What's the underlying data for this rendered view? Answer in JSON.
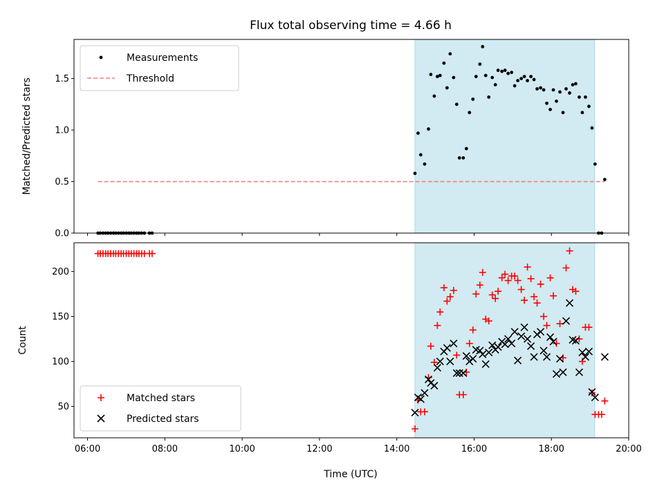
{
  "chart_data": {
    "title": "Flux total observing time = 4.66 h",
    "xlabel": "Time (UTC)",
    "xlim": [
      5.65,
      20.0
    ],
    "xticks": [
      6,
      8,
      10,
      12,
      14,
      16,
      18,
      20
    ],
    "xticklabels": [
      "06:00",
      "08:00",
      "10:00",
      "12:00",
      "14:00",
      "16:00",
      "18:00",
      "20:00"
    ],
    "shaded_span": [
      14.47,
      19.12
    ],
    "shade_color": "#add8e6",
    "panels": [
      {
        "type": "scatter",
        "ylabel": "Matched/Predicted stars",
        "ylim": [
          0,
          1.88
        ],
        "yticks": [
          0.0,
          0.5,
          1.0,
          1.5
        ],
        "yticklabels": [
          "0.0",
          "0.5",
          "1.0",
          "1.5"
        ],
        "legend": {
          "position": "upper-left",
          "entries": [
            "Measurements",
            "Threshold"
          ]
        },
        "series": [
          {
            "name": "Measurements",
            "marker": "dot",
            "color": "#000000",
            "x": [
              6.27,
              6.33,
              6.4,
              6.47,
              6.53,
              6.6,
              6.67,
              6.73,
              6.8,
              6.87,
              6.93,
              7.0,
              7.07,
              7.13,
              7.2,
              7.27,
              7.33,
              7.4,
              7.47,
              7.6,
              7.67,
              14.47,
              14.55,
              14.62,
              14.72,
              14.82,
              14.88,
              14.97,
              15.05,
              15.12,
              15.22,
              15.3,
              15.38,
              15.47,
              15.55,
              15.62,
              15.72,
              15.8,
              15.88,
              15.97,
              16.05,
              16.15,
              16.22,
              16.3,
              16.38,
              16.47,
              16.55,
              16.62,
              16.72,
              16.8,
              16.88,
              16.97,
              17.05,
              17.13,
              17.22,
              17.3,
              17.38,
              17.47,
              17.55,
              17.63,
              17.72,
              17.8,
              17.88,
              17.97,
              18.05,
              18.13,
              18.22,
              18.3,
              18.38,
              18.47,
              18.55,
              18.63,
              18.72,
              18.8,
              18.88,
              18.97,
              19.05,
              19.13,
              19.22,
              19.3,
              19.38
            ],
            "y": [
              0,
              0,
              0,
              0,
              0,
              0,
              0,
              0,
              0,
              0,
              0,
              0,
              0,
              0,
              0,
              0,
              0,
              0,
              0,
              0,
              0,
              0.58,
              0.97,
              0.76,
              0.67,
              1.01,
              1.54,
              1.33,
              1.52,
              1.53,
              1.65,
              1.41,
              1.74,
              1.51,
              1.25,
              0.73,
              0.73,
              0.82,
              1.17,
              1.3,
              1.52,
              1.64,
              1.81,
              1.53,
              1.32,
              1.51,
              1.44,
              1.58,
              1.57,
              1.58,
              1.55,
              1.56,
              1.43,
              1.48,
              1.5,
              1.52,
              1.48,
              1.52,
              1.49,
              1.4,
              1.41,
              1.39,
              1.26,
              1.2,
              1.39,
              1.28,
              1.37,
              1.17,
              1.4,
              1.36,
              1.44,
              1.45,
              1.32,
              1.17,
              1.32,
              1.23,
              1.02,
              0.67,
              0,
              0,
              0.52
            ]
          },
          {
            "name": "Threshold",
            "line": "dashed",
            "color": "#f08080",
            "x": [
              6.27,
              19.38
            ],
            "y": [
              0.5,
              0.5
            ]
          }
        ]
      },
      {
        "type": "scatter",
        "ylabel": "Count",
        "ylim": [
          15,
          232
        ],
        "yticks": [
          50,
          100,
          150,
          200
        ],
        "yticklabels": [
          "50",
          "100",
          "150",
          "200"
        ],
        "legend": {
          "position": "lower-left",
          "entries": [
            "Matched stars",
            "Predicted stars"
          ]
        },
        "series": [
          {
            "name": "Matched stars",
            "marker": "plus",
            "color": "#ff0000",
            "x": [
              6.27,
              6.33,
              6.4,
              6.47,
              6.53,
              6.6,
              6.67,
              6.73,
              6.8,
              6.87,
              6.93,
              7.0,
              7.07,
              7.13,
              7.2,
              7.27,
              7.33,
              7.4,
              7.47,
              7.6,
              7.67,
              14.47,
              14.55,
              14.62,
              14.72,
              14.82,
              14.88,
              14.97,
              15.05,
              15.12,
              15.22,
              15.3,
              15.38,
              15.47,
              15.55,
              15.62,
              15.72,
              15.8,
              15.88,
              15.97,
              16.05,
              16.15,
              16.22,
              16.3,
              16.38,
              16.47,
              16.55,
              16.62,
              16.72,
              16.8,
              16.88,
              16.97,
              17.05,
              17.13,
              17.22,
              17.3,
              17.38,
              17.47,
              17.55,
              17.63,
              17.72,
              17.8,
              17.88,
              17.97,
              18.05,
              18.13,
              18.22,
              18.3,
              18.38,
              18.47,
              18.55,
              18.63,
              18.72,
              18.8,
              18.88,
              18.97,
              19.05,
              19.13,
              19.22,
              19.3,
              19.38
            ],
            "y": [
              220,
              220,
              220,
              220,
              220,
              220,
              220,
              220,
              220,
              220,
              220,
              220,
              220,
              220,
              220,
              220,
              220,
              220,
              220,
              220,
              220,
              25,
              57,
              44,
              44,
              82,
              117,
              99,
              140,
              155,
              182,
              167,
              172,
              179,
              107,
              63,
              63,
              88,
              120,
              135,
              175,
              185,
              199,
              147,
              145,
              174,
              170,
              178,
              193,
              197,
              190,
              195,
              195,
              190,
              180,
              168,
              205,
              192,
              172,
              165,
              186,
              150,
              140,
              193,
              173,
              120,
              142,
              104,
              204,
              223,
              180,
              178,
              125,
              100,
              138,
              138,
              65,
              41,
              41,
              41,
              56
            ]
          },
          {
            "name": "Predicted stars",
            "marker": "x",
            "color": "#000000",
            "x": [
              14.47,
              14.55,
              14.62,
              14.72,
              14.82,
              14.88,
              14.97,
              15.05,
              15.12,
              15.22,
              15.3,
              15.38,
              15.47,
              15.55,
              15.62,
              15.72,
              15.8,
              15.88,
              15.97,
              16.05,
              16.15,
              16.22,
              16.3,
              16.38,
              16.47,
              16.55,
              16.62,
              16.72,
              16.8,
              16.88,
              16.97,
              17.05,
              17.13,
              17.22,
              17.3,
              17.38,
              17.47,
              17.55,
              17.63,
              17.72,
              17.8,
              17.88,
              17.97,
              18.05,
              18.13,
              18.22,
              18.3,
              18.38,
              18.47,
              18.55,
              18.63,
              18.72,
              18.8,
              18.88,
              18.97,
              19.05,
              19.13,
              19.38
            ],
            "y": [
              43,
              60,
              58,
              65,
              80,
              76,
              73,
              93,
              100,
              111,
              115,
              100,
              120,
              87,
              87,
              87,
              106,
              100,
              103,
              113,
              112,
              108,
              97,
              110,
              118,
              113,
              116,
              122,
              119,
              125,
              120,
              133,
              101,
              128,
              138,
              125,
              117,
              105,
              130,
              133,
              112,
              105,
              127,
              122,
              86,
              103,
              88,
              145,
              165,
              124,
              123,
              88,
              110,
              105,
              111,
              66,
              60,
              105
            ]
          }
        ]
      }
    ]
  }
}
